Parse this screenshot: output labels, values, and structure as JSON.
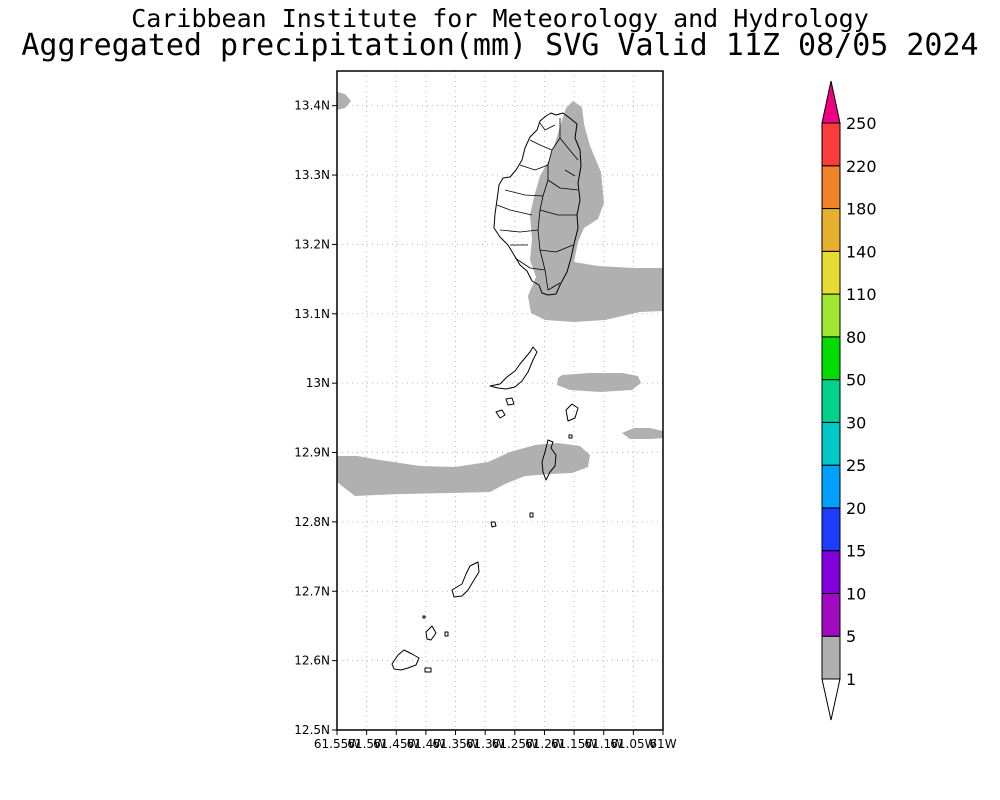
{
  "title": {
    "line1": "Caribbean Institute for Meteorology and Hydrology",
    "line2": "Aggregated precipitation(mm) SVG Valid 11Z 08/05 2024"
  },
  "map": {
    "lat_range": [
      12.5,
      13.45
    ],
    "lon_range": [
      -61.55,
      -61.0
    ],
    "lat_ticks": [
      {
        "value": 13.4,
        "label": "13.4N"
      },
      {
        "value": 13.3,
        "label": "13.3N"
      },
      {
        "value": 13.2,
        "label": "13.2N"
      },
      {
        "value": 13.1,
        "label": "13.1N"
      },
      {
        "value": 13.0,
        "label": "13N"
      },
      {
        "value": 12.9,
        "label": "12.9N"
      },
      {
        "value": 12.8,
        "label": "12.8N"
      },
      {
        "value": 12.7,
        "label": "12.7N"
      },
      {
        "value": 12.6,
        "label": "12.6N"
      },
      {
        "value": 12.5,
        "label": "12.5N"
      }
    ],
    "lon_ticks": [
      {
        "value": -61.55,
        "label": "61.55W"
      },
      {
        "value": -61.5,
        "label": "61.5W"
      },
      {
        "value": -61.45,
        "label": "61.45W"
      },
      {
        "value": -61.4,
        "label": "61.4W"
      },
      {
        "value": -61.35,
        "label": "61.35W"
      },
      {
        "value": -61.3,
        "label": "61.3W"
      },
      {
        "value": -61.25,
        "label": "61.25W"
      },
      {
        "value": -61.2,
        "label": "61.2W"
      },
      {
        "value": -61.15,
        "label": "61.15W"
      },
      {
        "value": -61.1,
        "label": "61.1W"
      },
      {
        "value": -61.05,
        "label": "61.05W"
      },
      {
        "value": -61.0,
        "label": "61W"
      }
    ],
    "grid": true,
    "rain_color": "#b0b0b0",
    "coast_color": "#000000"
  },
  "colorbar": {
    "levels": [
      {
        "label": "1",
        "color": "#b0b0b0"
      },
      {
        "label": "5",
        "color": "#a00ac0"
      },
      {
        "label": "10",
        "color": "#8200dc"
      },
      {
        "label": "15",
        "color": "#1e3cff"
      },
      {
        "label": "20",
        "color": "#00a0ff"
      },
      {
        "label": "25",
        "color": "#00c8c8"
      },
      {
        "label": "30",
        "color": "#00d28c"
      },
      {
        "label": "50",
        "color": "#00dc00"
      },
      {
        "label": "80",
        "color": "#a0e632"
      },
      {
        "label": "110",
        "color": "#e6dc32"
      },
      {
        "label": "140",
        "color": "#e6af2d"
      },
      {
        "label": "180",
        "color": "#f08228"
      },
      {
        "label": "220",
        "color": "#fa3c3c"
      },
      {
        "label": "250",
        "color": "#f00082"
      }
    ]
  }
}
